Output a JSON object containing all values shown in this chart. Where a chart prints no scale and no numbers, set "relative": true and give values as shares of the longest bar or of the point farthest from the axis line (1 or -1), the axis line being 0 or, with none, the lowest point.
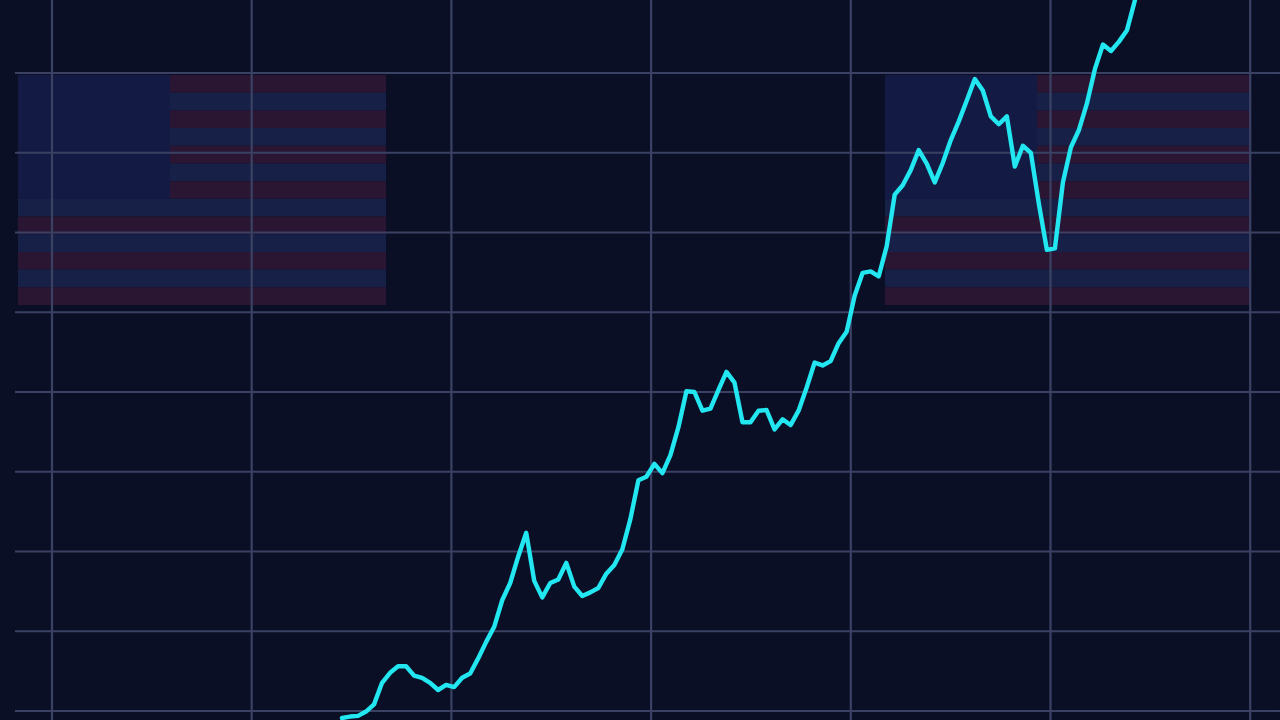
{
  "chart_data": {
    "type": "line",
    "relative": true,
    "grid": true,
    "line_style": "solid",
    "categories": [
      null,
      null,
      null,
      null,
      null,
      null,
      null,
      null,
      null,
      null,
      null,
      null,
      null,
      null,
      null,
      null,
      null,
      null,
      null,
      null,
      null,
      null,
      null,
      null,
      null,
      null,
      null,
      null,
      null,
      null,
      null,
      null,
      null,
      null,
      null,
      null,
      null,
      null,
      null,
      null,
      null,
      null,
      null,
      null,
      null,
      null,
      null,
      null,
      null,
      null,
      null,
      null,
      null,
      null,
      null,
      null,
      null,
      null,
      null,
      null,
      null,
      null,
      null,
      null,
      null,
      null,
      null,
      null,
      null,
      null,
      null,
      null,
      null,
      null,
      null,
      null,
      null,
      null,
      null,
      null,
      null,
      null,
      null,
      null,
      null,
      null,
      null,
      null,
      null,
      null,
      null,
      null,
      null,
      null,
      null,
      null,
      null,
      null,
      null,
      null
    ],
    "series": [
      {
        "color": "#22e6f0",
        "values": [
          0,
          0.002,
          0.003,
          0.009,
          0.019,
          0.049,
          0.063,
          0.072,
          0.072,
          0.059,
          0.056,
          0.049,
          0.039,
          0.046,
          0.043,
          0.056,
          0.062,
          0.083,
          0.106,
          0.127,
          0.164,
          0.188,
          0.225,
          0.258,
          0.191,
          0.168,
          0.188,
          0.193,
          0.216,
          0.183,
          0.17,
          0.175,
          0.181,
          0.201,
          0.213,
          0.235,
          0.277,
          0.331,
          0.336,
          0.354,
          0.341,
          0.366,
          0.405,
          0.455,
          0.454,
          0.428,
          0.431,
          0.457,
          0.482,
          0.467,
          0.412,
          0.412,
          0.428,
          0.429,
          0.402,
          0.416,
          0.408,
          0.428,
          0.46,
          0.495,
          0.491,
          0.497,
          0.522,
          0.538,
          0.588,
          0.62,
          0.622,
          0.615,
          0.657,
          0.729,
          0.742,
          0.763,
          0.791,
          0.772,
          0.746,
          0.773,
          0.805,
          0.831,
          0.86,
          0.89,
          0.874,
          0.838,
          0.827,
          0.838,
          0.768,
          0.797,
          0.787,
          0.716,
          0.652,
          0.654,
          0.746,
          0.795,
          0.819,
          0.856,
          0.904,
          0.938,
          0.929,
          0.942,
          0.958,
          1
        ]
      }
    ]
  }
}
